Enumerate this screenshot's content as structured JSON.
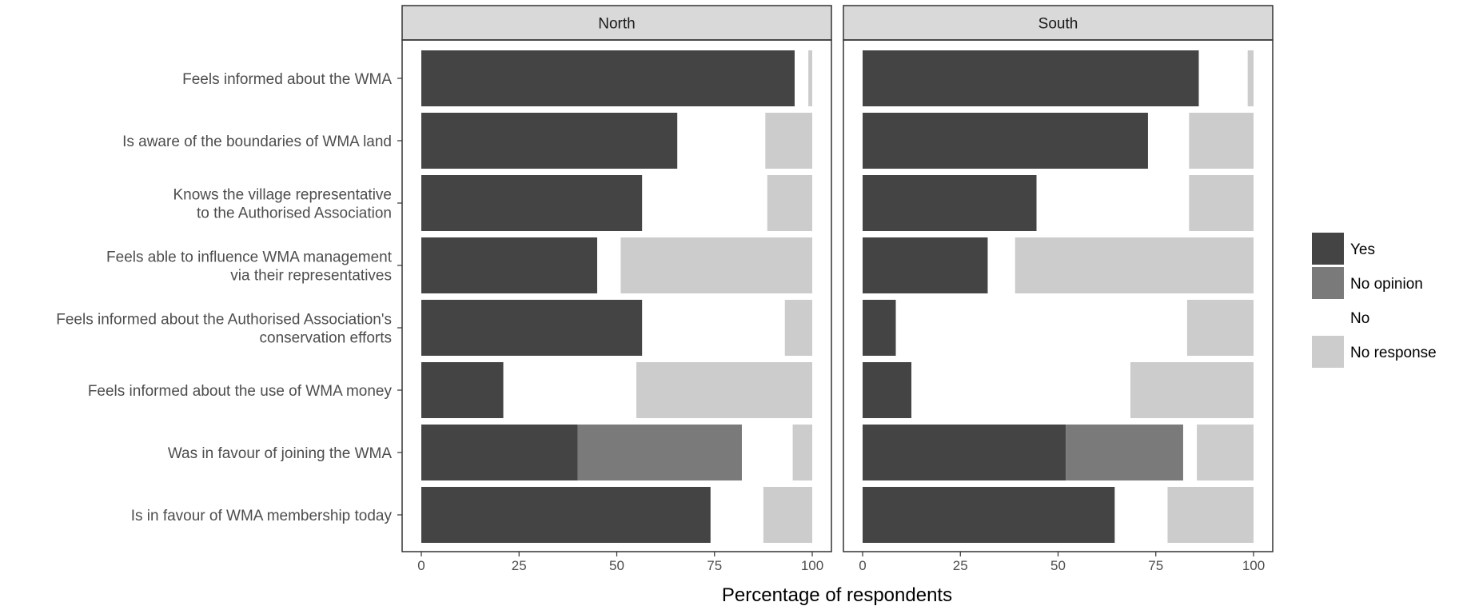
{
  "chart_data": {
    "type": "bar",
    "orientation": "horizontal",
    "stacked": true,
    "facets": [
      "North",
      "South"
    ],
    "categories": [
      "Feels informed about the WMA",
      "Is aware of the boundaries of WMA land",
      "Knows the village representative\nto the Authorised Association",
      "Feels able to influence WMA management\nvia their representatives",
      "Feels informed about the Authorised Association's\nconservation efforts",
      "Feels informed about the use of WMA money",
      "Was in favour of joining the WMA",
      "Is in favour of WMA membership today"
    ],
    "series": [
      {
        "name": "Yes",
        "color": "#444444",
        "values": {
          "North": [
            95.5,
            65.5,
            56.5,
            45,
            56.5,
            21,
            40,
            74
          ],
          "South": [
            86,
            73,
            44.5,
            32,
            8.5,
            12.5,
            52,
            64.5
          ]
        }
      },
      {
        "name": "No opinion",
        "color": "#7a7a7a",
        "values": {
          "North": [
            0,
            0,
            0,
            0,
            0,
            0,
            42,
            0
          ],
          "South": [
            0,
            0,
            0,
            0,
            0,
            0,
            30,
            0
          ]
        }
      },
      {
        "name": "No",
        "color": "#ffffff",
        "values": {
          "North": [
            3.5,
            22.5,
            32,
            6,
            36.5,
            34,
            13,
            13.5
          ],
          "South": [
            12.5,
            10.5,
            39,
            7,
            74.5,
            56,
            3.5,
            13.5
          ]
        }
      },
      {
        "name": "No response",
        "color": "#cccccc",
        "values": {
          "North": [
            1,
            12,
            11.5,
            49,
            7,
            45,
            5,
            12.5
          ],
          "South": [
            1.5,
            16.5,
            16.5,
            61,
            17,
            31.5,
            14.5,
            22
          ]
        }
      }
    ],
    "xlabel": "Percentage of respondents",
    "ylabel": "",
    "xlim": [
      0,
      100
    ],
    "xticks": [
      0,
      25,
      50,
      75,
      100
    ],
    "grid": false,
    "legend_position": "right"
  }
}
